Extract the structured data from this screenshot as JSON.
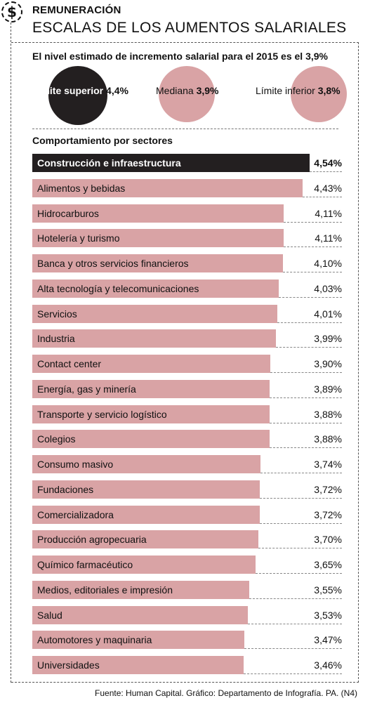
{
  "header": {
    "kicker": "REMUNERACIÓN",
    "title": "ESCALAS DE LOS AUMENTOS SALARIALES",
    "icon": "dollar-icon"
  },
  "estimate": {
    "text": "El nivel estimado de incremento salarial para el 2015 es el 3,9%",
    "upper_label": "Límite superior",
    "upper_value": "4,4%",
    "median_label": "Mediana",
    "median_value": "3,9%",
    "lower_label": "Límite inferior",
    "lower_value": "3,8%"
  },
  "section_title": "Comportamiento por sectores",
  "footer": "Fuente: Human Capital. Gráfico: Departamento de Infografía. PA. (N4)",
  "colors": {
    "highlight": "#231f20",
    "bar": "#d9a3a5"
  },
  "chart_data": {
    "type": "bar",
    "orientation": "horizontal",
    "categories": [
      "Construcción e infraestructura",
      "Alimentos y bebidas",
      "Hidrocarburos",
      "Hotelería y turismo",
      "Banca y otros servicios financieros",
      "Alta tecnología y telecomunicaciones",
      "Servicios",
      "Industria",
      "Contact center",
      "Energía, gas y minería",
      "Transporte y servicio logístico",
      "Colegios",
      "Consumo masivo",
      "Fundaciones",
      "Comercializadora",
      "Producción agropecuaria",
      "Químico farmacéutico",
      "Medios, editoriales e impresión",
      "Salud",
      "Automotores y maquinaria",
      "Universidades"
    ],
    "values": [
      4.54,
      4.43,
      4.11,
      4.11,
      4.1,
      4.03,
      4.01,
      3.99,
      3.9,
      3.89,
      3.88,
      3.88,
      3.74,
      3.72,
      3.72,
      3.7,
      3.65,
      3.55,
      3.53,
      3.47,
      3.46
    ],
    "value_labels": [
      "4,54%",
      "4,43%",
      "4,11%",
      "4,11%",
      "4,10%",
      "4,03%",
      "4,01%",
      "3,99%",
      "3,90%",
      "3,89%",
      "3,88%",
      "3,88%",
      "3,74%",
      "3,72%",
      "3,72%",
      "3,70%",
      "3,65%",
      "3,55%",
      "3,53%",
      "3,47%",
      "3,46%"
    ],
    "highlight_index": 0
  }
}
